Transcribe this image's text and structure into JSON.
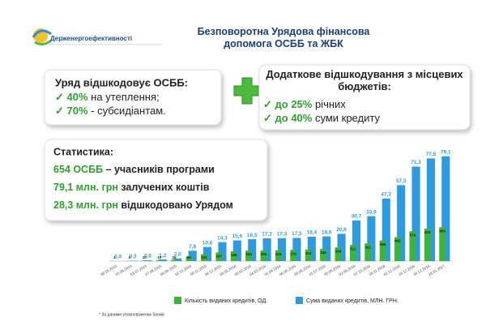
{
  "header": {
    "logo": "Держенергоефективності",
    "title": "Безповоротна Урядова фінансова допомога ОСББ та ЖБК"
  },
  "left_box": {
    "title": "Уряд відшкодовує ОСББ:",
    "items": [
      {
        "strong": "40%",
        "text": "на утеплення;"
      },
      {
        "strong": "70%",
        "text": "- субсидіантам."
      }
    ]
  },
  "right_box": {
    "title": "Додаткове відшкодування з місцевих бюджетів:",
    "items": [
      {
        "strong": "до 25%",
        "text": "річних"
      },
      {
        "strong": "до 40%",
        "text": "суми кредиту"
      }
    ]
  },
  "stats": {
    "title": "Статистика:",
    "lines": [
      {
        "strong": "654 ОСББ",
        "text": "– учасників програми"
      },
      {
        "strong": "79,1 млн. грн",
        "text": "залучених коштів"
      },
      {
        "strong": "28,3 млн. грн",
        "text": "відшкодовано Урядом"
      }
    ]
  },
  "footnote": "* За даними уповноважених банків",
  "chart_data": {
    "type": "bar",
    "categories": [
      "08.05.2015",
      "05.06.2015",
      "03.07.2015",
      "07.08.2015",
      "04.09.2015",
      "02.10.2015",
      "06.11.2015",
      "04.12.2015",
      "08.01.2016",
      "05.02.2016",
      "04.03.2016",
      "01.04.2016",
      "06.05.2016",
      "03.06.2016",
      "01.07.2016",
      "05.08.2016",
      "02.09.2016",
      "07.10.2016",
      "04.11.2016",
      "02.12.2016",
      "16.12.2016",
      "30.12.2016",
      "18.01.2017"
    ],
    "series": [
      {
        "name": "Сума виданих кредитів, МЛН. ГРН.",
        "color": "#2e9be0",
        "axis": "y",
        "values": [
          0.0,
          0.3,
          0.6,
          1.2,
          2.0,
          7.8,
          10.6,
          14.3,
          15.6,
          16.5,
          17.2,
          17.3,
          17.5,
          18.4,
          18.6,
          20.6,
          30.7,
          33.9,
          47.2,
          57.3,
          71.3,
          77.5,
          79.1
        ],
        "value_labels": [
          "0,0",
          "0,3",
          "0,6",
          "1,2",
          "2,0",
          "7,8",
          "10,6",
          "14,3",
          "15,6",
          "16,5",
          "17,2",
          "17,3",
          "17,5",
          "18,4",
          "18,6",
          "20,6",
          "30,7",
          "33,9",
          "47,2",
          "57,3",
          "71,3",
          "77,5",
          "79,1"
        ]
      },
      {
        "name": "Кількість виданих кредитів, ОД.",
        "color": "#3cb43c",
        "axis": "y2",
        "values": [
          1,
          3,
          10,
          15,
          25,
          90,
          131,
          167,
          189,
          204,
          206,
          210,
          216,
          223,
          236,
          264,
          311,
          341,
          398,
          462,
          576,
          626,
          654
        ]
      }
    ],
    "ylim": [
      0,
      82
    ],
    "y2lim": [
      0,
      2100
    ]
  }
}
